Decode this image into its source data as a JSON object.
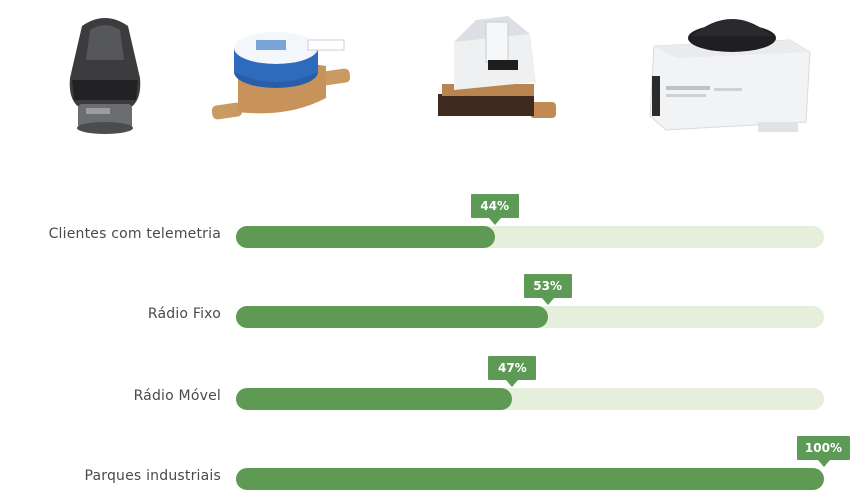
{
  "products": [
    {
      "name": "meter-head-dark",
      "icon": "smart-meter-head-icon"
    },
    {
      "name": "blue-water-meter",
      "icon": "water-meter-icon"
    },
    {
      "name": "white-water-meter",
      "icon": "water-meter-icon"
    },
    {
      "name": "gateway-box",
      "icon": "gateway-box-icon"
    }
  ],
  "colors": {
    "bar_fill": "#5f9a55",
    "bar_track": "#e6eedc",
    "callout": "#5d9a55"
  },
  "chart_data": {
    "type": "bar",
    "orientation": "horizontal",
    "categories": [
      "Clientes com telemetria",
      "Rádio Fixo",
      "Rádio Móvel",
      "Parques industriais"
    ],
    "values": [
      44,
      53,
      47,
      100
    ],
    "value_labels": [
      "44%",
      "53%",
      "47%",
      "100%"
    ],
    "xlim": [
      0,
      100
    ],
    "unit": "%",
    "grid": false,
    "legend": "none"
  }
}
